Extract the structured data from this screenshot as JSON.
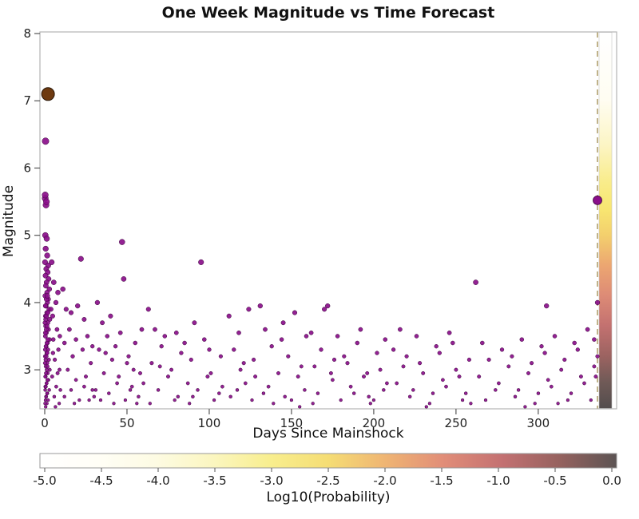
{
  "chart_data": {
    "type": "scatter",
    "title": "One Week Magnitude vs Time Forecast",
    "xlabel": "Days Since Mainshock",
    "ylabel": "Magnitude",
    "xlim": [
      0,
      347
    ],
    "ylim": [
      2.42,
      8
    ],
    "x_ticks": [
      0,
      50,
      100,
      150,
      200,
      250,
      300
    ],
    "y_ticks": [
      3,
      4,
      5,
      6,
      7,
      8
    ],
    "grid": false,
    "legend": "none",
    "point_color": "#8a0f8a",
    "point_edge_color": "#3a043a",
    "mainshock": {
      "x": 2,
      "y": 7.1,
      "r": 8,
      "color": "#6e3a10",
      "edge": "#2a1708"
    },
    "forecast_marker": {
      "x": 336,
      "y": 5.52,
      "r": 5.5,
      "color": "#8a0f8a",
      "edge": "#3a043a"
    },
    "forecast_line_x": 336,
    "forecast_line_color": "#b9ab7e",
    "forecast_strip": {
      "x_left_days": 337,
      "stops": [
        [
          0.0,
          "#ffffff"
        ],
        [
          0.18,
          "#fffdf2"
        ],
        [
          0.3,
          "#fcf5c4"
        ],
        [
          0.4,
          "#f9ec8a"
        ],
        [
          0.47,
          "#f8e671"
        ],
        [
          0.54,
          "#f3cf6d"
        ],
        [
          0.62,
          "#eca671"
        ],
        [
          0.7,
          "#dd8b76"
        ],
        [
          0.78,
          "#c37170"
        ],
        [
          0.86,
          "#9c6361"
        ],
        [
          0.93,
          "#705a57"
        ],
        [
          1.0,
          "#534d4d"
        ]
      ]
    },
    "colorbar": {
      "label": "Log10(Probability)",
      "min": -5.0,
      "max": 0.0,
      "ticks": [
        "-5.0",
        "-4.5",
        "-4.0",
        "-3.5",
        "-3.0",
        "-2.5",
        "-2.0",
        "-1.5",
        "-1.0",
        "-0.5",
        "0.0"
      ],
      "stops": [
        "#ffffff",
        "#fffef6",
        "#fdfbe3",
        "#fbf6c0",
        "#f8ee8e",
        "#f5dd74",
        "#efb473",
        "#e18d78",
        "#c47172",
        "#96625f",
        "#5c5453"
      ]
    },
    "points": [
      [
        0.3,
        5.55,
        3.9
      ],
      [
        0.8,
        5.45,
        3.8
      ],
      [
        0.4,
        5.0,
        3.6
      ],
      [
        1.2,
        4.95,
        3.5
      ],
      [
        0.6,
        4.8,
        3.4
      ],
      [
        1.5,
        4.7,
        3.4
      ],
      [
        0.2,
        4.6,
        3.3
      ],
      [
        2.1,
        4.55,
        3.3
      ],
      [
        0.9,
        4.5,
        3.2
      ],
      [
        1.8,
        4.45,
        3.2
      ],
      [
        0.5,
        4.4,
        3.2
      ],
      [
        2.4,
        4.35,
        3.1
      ],
      [
        1.1,
        4.3,
        3.1
      ],
      [
        0.7,
        4.25,
        3.1
      ],
      [
        2.8,
        4.2,
        3.0
      ],
      [
        1.4,
        4.15,
        3.0
      ],
      [
        0.3,
        4.1,
        3.0
      ],
      [
        2.2,
        4.05,
        2.9
      ],
      [
        1.6,
        4.0,
        2.9
      ],
      [
        0.8,
        3.95,
        2.9
      ],
      [
        2.6,
        3.9,
        2.8
      ],
      [
        1.3,
        3.85,
        2.8
      ],
      [
        0.5,
        3.8,
        2.8
      ],
      [
        3.1,
        3.75,
        2.7
      ],
      [
        1.9,
        3.7,
        2.7
      ],
      [
        0.6,
        3.65,
        2.7
      ],
      [
        2.3,
        3.6,
        2.6
      ],
      [
        1.0,
        3.55,
        2.6
      ],
      [
        0.4,
        3.5,
        2.6
      ],
      [
        2.9,
        3.45,
        2.5
      ],
      [
        1.7,
        3.4,
        2.5
      ],
      [
        0.9,
        3.35,
        2.5
      ],
      [
        2.0,
        3.3,
        2.4
      ],
      [
        1.2,
        3.25,
        2.4
      ],
      [
        0.3,
        3.2,
        2.4
      ],
      [
        2.5,
        3.15,
        2.3
      ],
      [
        1.5,
        3.1,
        2.3
      ],
      [
        0.7,
        3.05,
        2.3
      ],
      [
        3.0,
        3.0,
        2.2
      ],
      [
        1.8,
        2.95,
        2.2
      ],
      [
        0.5,
        2.9,
        2.2
      ],
      [
        2.2,
        2.85,
        2.1
      ],
      [
        1.1,
        2.8,
        2.1
      ],
      [
        0.4,
        2.75,
        2.1
      ],
      [
        2.7,
        2.7,
        2.0
      ],
      [
        1.6,
        2.65,
        2.0
      ],
      [
        0.8,
        2.6,
        2.0
      ],
      [
        2.1,
        2.55,
        1.9
      ],
      [
        1.3,
        2.5,
        1.9
      ],
      [
        0.6,
        2.45,
        1.9
      ],
      [
        0.2,
        2.5,
        1.9
      ],
      [
        0.5,
        2.55,
        1.9
      ],
      [
        0.9,
        2.6,
        2.0
      ],
      [
        1.4,
        2.65,
        2.0
      ],
      [
        0.3,
        2.7,
        2.0
      ],
      [
        0.7,
        2.75,
        2.1
      ],
      [
        1.1,
        2.8,
        2.1
      ],
      [
        1.6,
        2.85,
        2.1
      ],
      [
        0.4,
        2.9,
        2.2
      ],
      [
        0.8,
        2.95,
        2.2
      ],
      [
        1.2,
        3.0,
        2.2
      ],
      [
        1.7,
        3.05,
        2.2
      ],
      [
        0.2,
        3.1,
        2.3
      ],
      [
        0.6,
        3.15,
        2.3
      ],
      [
        1.0,
        3.2,
        2.3
      ],
      [
        1.5,
        3.25,
        2.4
      ],
      [
        0.3,
        3.3,
        2.4
      ],
      [
        0.7,
        3.35,
        2.4
      ],
      [
        1.3,
        3.4,
        2.5
      ],
      [
        1.8,
        3.45,
        2.5
      ],
      [
        0.4,
        3.55,
        2.6
      ],
      [
        0.9,
        3.6,
        2.6
      ],
      [
        1.4,
        3.65,
        2.6
      ],
      [
        0.2,
        3.7,
        2.7
      ],
      [
        0.6,
        3.75,
        2.7
      ],
      [
        1.1,
        3.8,
        2.8
      ],
      [
        1.9,
        3.85,
        2.8
      ],
      [
        0.5,
        3.95,
        2.9
      ],
      [
        1.0,
        4.05,
        2.9
      ],
      [
        1.6,
        4.1,
        3.0
      ],
      [
        4.2,
        4.6,
        3.3
      ],
      [
        5.5,
        4.3,
        3.1
      ],
      [
        6.8,
        4.0,
        2.9
      ],
      [
        4.8,
        3.8,
        2.8
      ],
      [
        7.5,
        3.6,
        2.6
      ],
      [
        5.2,
        3.45,
        2.5
      ],
      [
        8.3,
        3.3,
        2.4
      ],
      [
        6.1,
        3.15,
        2.3
      ],
      [
        9.0,
        3.0,
        2.2
      ],
      [
        4.5,
        2.9,
        2.2
      ],
      [
        7.0,
        2.75,
        2.1
      ],
      [
        5.8,
        2.6,
        2.0
      ],
      [
        8.8,
        2.5,
        1.9
      ],
      [
        6.5,
        2.45,
        1.9
      ],
      [
        9.5,
        2.7,
        2.0
      ],
      [
        3.8,
        3.9,
        2.8
      ],
      [
        9.2,
        3.5,
        2.5
      ],
      [
        7.8,
        2.95,
        2.2
      ],
      [
        5.0,
        3.25,
        2.4
      ],
      [
        8.0,
        4.15,
        3.0
      ],
      [
        11,
        4.2,
        3.0
      ],
      [
        13,
        3.9,
        2.8
      ],
      [
        15,
        3.6,
        2.6
      ],
      [
        12,
        3.4,
        2.5
      ],
      [
        17,
        3.2,
        2.4
      ],
      [
        14,
        3.0,
        2.2
      ],
      [
        19,
        2.85,
        2.1
      ],
      [
        16,
        2.7,
        2.0
      ],
      [
        21,
        2.55,
        1.9
      ],
      [
        18,
        2.5,
        1.9
      ],
      [
        22,
        4.65,
        3.3
      ],
      [
        24,
        3.75,
        2.7
      ],
      [
        26,
        3.5,
        2.5
      ],
      [
        23,
        3.3,
        2.4
      ],
      [
        28,
        3.1,
        2.3
      ],
      [
        25,
        2.9,
        2.2
      ],
      [
        29,
        2.7,
        2.0
      ],
      [
        27,
        2.55,
        1.9
      ],
      [
        20,
        3.95,
        2.9
      ],
      [
        30,
        2.6,
        2.0
      ],
      [
        12,
        2.6,
        2.0
      ],
      [
        16,
        3.85,
        2.8
      ],
      [
        19,
        3.45,
        2.5
      ],
      [
        24,
        2.75,
        2.1
      ],
      [
        29,
        3.35,
        2.4
      ],
      [
        32,
        4.0,
        2.9
      ],
      [
        35,
        3.7,
        2.7
      ],
      [
        38,
        3.5,
        2.5
      ],
      [
        33,
        3.3,
        2.4
      ],
      [
        41,
        3.15,
        2.3
      ],
      [
        36,
        2.95,
        2.2
      ],
      [
        44,
        2.8,
        2.1
      ],
      [
        39,
        2.65,
        2.0
      ],
      [
        47,
        4.9,
        3.5
      ],
      [
        48,
        4.35,
        3.1
      ],
      [
        46,
        3.55,
        2.6
      ],
      [
        43,
        3.35,
        2.4
      ],
      [
        50,
        3.1,
        2.3
      ],
      [
        45,
        2.9,
        2.2
      ],
      [
        52,
        2.7,
        2.0
      ],
      [
        49,
        2.55,
        1.9
      ],
      [
        55,
        3.4,
        2.5
      ],
      [
        51,
        3.2,
        2.3
      ],
      [
        58,
        2.95,
        2.2
      ],
      [
        53,
        2.75,
        2.1
      ],
      [
        57,
        2.6,
        2.0
      ],
      [
        34,
        2.55,
        1.9
      ],
      [
        42,
        2.5,
        1.9
      ],
      [
        59,
        3.6,
        2.6
      ],
      [
        37,
        3.25,
        2.4
      ],
      [
        56,
        2.5,
        1.9
      ],
      [
        40,
        3.8,
        2.8
      ],
      [
        54,
        3.0,
        2.2
      ],
      [
        31,
        2.7,
        2.0
      ],
      [
        60,
        2.8,
        2.1
      ],
      [
        63,
        3.9,
        2.8
      ],
      [
        67,
        3.6,
        2.6
      ],
      [
        71,
        3.35,
        2.4
      ],
      [
        65,
        3.1,
        2.3
      ],
      [
        75,
        2.9,
        2.2
      ],
      [
        69,
        2.7,
        2.0
      ],
      [
        79,
        2.55,
        1.9
      ],
      [
        73,
        3.5,
        2.5
      ],
      [
        83,
        3.25,
        2.4
      ],
      [
        77,
        3.0,
        2.2
      ],
      [
        87,
        2.8,
        2.1
      ],
      [
        81,
        2.6,
        2.0
      ],
      [
        91,
        3.7,
        2.7
      ],
      [
        85,
        3.4,
        2.5
      ],
      [
        95,
        4.6,
        3.3
      ],
      [
        89,
        3.15,
        2.3
      ],
      [
        99,
        2.9,
        2.2
      ],
      [
        93,
        2.7,
        2.0
      ],
      [
        103,
        2.55,
        1.9
      ],
      [
        97,
        3.45,
        2.5
      ],
      [
        107,
        3.2,
        2.3
      ],
      [
        101,
        2.95,
        2.2
      ],
      [
        64,
        2.5,
        1.9
      ],
      [
        88,
        2.5,
        1.9
      ],
      [
        106,
        2.65,
        2.0
      ],
      [
        70,
        3.05,
        2.2
      ],
      [
        80,
        3.55,
        2.6
      ],
      [
        100,
        3.3,
        2.4
      ],
      [
        90,
        2.6,
        2.0
      ],
      [
        108,
        2.75,
        2.1
      ],
      [
        112,
        3.8,
        2.8
      ],
      [
        118,
        3.55,
        2.6
      ],
      [
        124,
        3.9,
        2.8
      ],
      [
        115,
        3.3,
        2.4
      ],
      [
        121,
        3.1,
        2.3
      ],
      [
        128,
        2.9,
        2.2
      ],
      [
        117,
        2.7,
        2.0
      ],
      [
        131,
        3.95,
        2.9
      ],
      [
        126,
        2.55,
        1.9
      ],
      [
        134,
        3.6,
        2.6
      ],
      [
        138,
        3.35,
        2.4
      ],
      [
        127,
        3.15,
        2.3
      ],
      [
        142,
        2.95,
        2.2
      ],
      [
        136,
        2.75,
        2.1
      ],
      [
        146,
        2.6,
        2.0
      ],
      [
        139,
        2.5,
        1.9
      ],
      [
        152,
        3.85,
        2.8
      ],
      [
        144,
        3.45,
        2.5
      ],
      [
        148,
        3.2,
        2.3
      ],
      [
        154,
        2.9,
        2.2
      ],
      [
        158,
        2.7,
        2.0
      ],
      [
        150,
        2.55,
        1.9
      ],
      [
        156,
        3.05,
        2.2
      ],
      [
        113,
        2.6,
        2.0
      ],
      [
        159,
        3.5,
        2.5
      ],
      [
        122,
        2.8,
        2.1
      ],
      [
        133,
        2.65,
        2.0
      ],
      [
        145,
        3.7,
        2.7
      ],
      [
        155,
        2.45,
        1.9
      ],
      [
        119,
        3.0,
        2.2
      ],
      [
        162,
        3.55,
        2.6
      ],
      [
        168,
        3.3,
        2.4
      ],
      [
        164,
        3.05,
        2.2
      ],
      [
        172,
        3.95,
        2.9
      ],
      [
        170,
        3.9,
        2.8
      ],
      [
        175,
        2.85,
        2.1
      ],
      [
        166,
        2.65,
        2.0
      ],
      [
        178,
        3.5,
        2.5
      ],
      [
        182,
        3.2,
        2.3
      ],
      [
        174,
        2.95,
        2.2
      ],
      [
        186,
        2.75,
        2.1
      ],
      [
        180,
        2.55,
        1.9
      ],
      [
        190,
        3.4,
        2.5
      ],
      [
        184,
        3.1,
        2.3
      ],
      [
        194,
        2.9,
        2.2
      ],
      [
        188,
        2.65,
        2.0
      ],
      [
        198,
        2.5,
        1.9
      ],
      [
        192,
        3.6,
        2.6
      ],
      [
        202,
        3.25,
        2.4
      ],
      [
        196,
        2.95,
        2.2
      ],
      [
        206,
        2.7,
        2.0
      ],
      [
        200,
        2.55,
        1.9
      ],
      [
        204,
        3.0,
        2.2
      ],
      [
        208,
        2.8,
        2.1
      ],
      [
        163,
        2.5,
        1.9
      ],
      [
        176,
        3.15,
        2.3
      ],
      [
        207,
        3.45,
        2.5
      ],
      [
        197,
        2.6,
        2.0
      ],
      [
        212,
        3.3,
        2.4
      ],
      [
        218,
        3.05,
        2.2
      ],
      [
        214,
        2.8,
        2.1
      ],
      [
        222,
        2.6,
        2.0
      ],
      [
        226,
        3.5,
        2.5
      ],
      [
        220,
        3.2,
        2.3
      ],
      [
        230,
        2.95,
        2.2
      ],
      [
        224,
        2.7,
        2.0
      ],
      [
        234,
        2.5,
        1.9
      ],
      [
        238,
        3.35,
        2.4
      ],
      [
        228,
        3.1,
        2.3
      ],
      [
        242,
        2.85,
        2.1
      ],
      [
        236,
        2.65,
        2.0
      ],
      [
        246,
        3.55,
        2.6
      ],
      [
        240,
        3.25,
        2.4
      ],
      [
        250,
        3.0,
        2.2
      ],
      [
        244,
        2.75,
        2.1
      ],
      [
        254,
        2.55,
        1.9
      ],
      [
        248,
        3.4,
        2.5
      ],
      [
        258,
        3.15,
        2.3
      ],
      [
        252,
        2.9,
        2.2
      ],
      [
        256,
        2.65,
        2.0
      ],
      [
        259,
        2.5,
        1.9
      ],
      [
        216,
        3.6,
        2.6
      ],
      [
        232,
        2.45,
        1.9
      ],
      [
        262,
        4.3,
        3.1
      ],
      [
        266,
        3.4,
        2.5
      ],
      [
        270,
        3.15,
        2.3
      ],
      [
        264,
        2.9,
        2.2
      ],
      [
        274,
        2.7,
        2.0
      ],
      [
        268,
        2.55,
        1.9
      ],
      [
        278,
        3.3,
        2.4
      ],
      [
        282,
        3.05,
        2.2
      ],
      [
        276,
        2.8,
        2.1
      ],
      [
        286,
        2.6,
        2.0
      ],
      [
        290,
        3.45,
        2.5
      ],
      [
        284,
        3.2,
        2.3
      ],
      [
        294,
        2.95,
        2.2
      ],
      [
        288,
        2.7,
        2.0
      ],
      [
        298,
        2.5,
        1.9
      ],
      [
        302,
        3.35,
        2.4
      ],
      [
        305,
        3.95,
        2.9
      ],
      [
        296,
        3.1,
        2.3
      ],
      [
        306,
        2.85,
        2.1
      ],
      [
        300,
        2.65,
        2.0
      ],
      [
        310,
        3.5,
        2.5
      ],
      [
        304,
        3.25,
        2.4
      ],
      [
        314,
        3.0,
        2.2
      ],
      [
        308,
        2.75,
        2.1
      ],
      [
        318,
        2.55,
        1.9
      ],
      [
        322,
        3.4,
        2.5
      ],
      [
        316,
        3.15,
        2.3
      ],
      [
        326,
        2.9,
        2.2
      ],
      [
        320,
        2.65,
        2.0
      ],
      [
        330,
        3.6,
        2.6
      ],
      [
        324,
        3.3,
        2.4
      ],
      [
        334,
        3.05,
        2.2
      ],
      [
        328,
        2.8,
        2.1
      ],
      [
        332,
        2.55,
        1.9
      ],
      [
        336,
        3.2,
        2.3
      ],
      [
        335,
        2.9,
        2.2
      ],
      [
        336,
        4.0,
        2.9
      ],
      [
        334,
        3.45,
        2.5
      ],
      [
        292,
        2.45,
        1.9
      ],
      [
        312,
        2.5,
        1.9
      ],
      [
        0.5,
        6.4,
        4.2
      ],
      [
        0.3,
        5.6,
        3.9
      ],
      [
        1.0,
        5.5,
        3.8
      ]
    ]
  }
}
